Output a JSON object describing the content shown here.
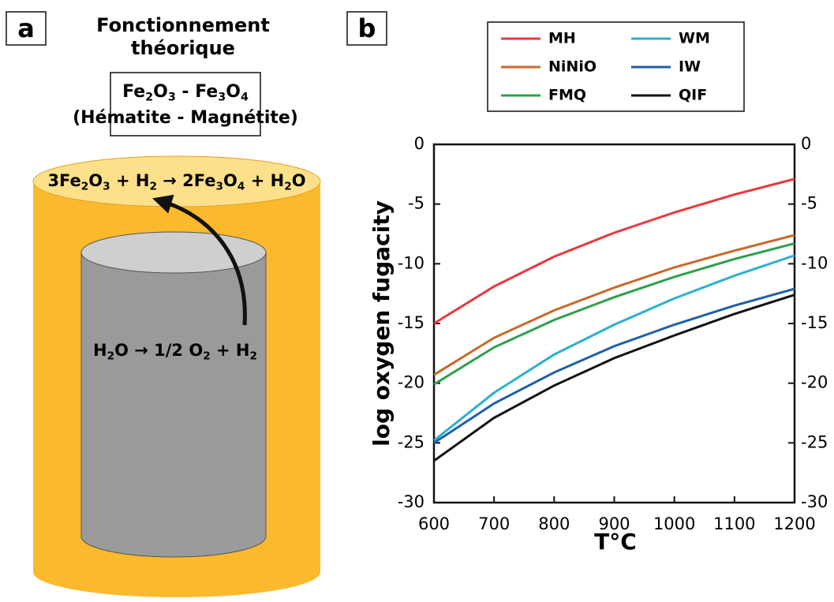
{
  "panel_a": {
    "label": "a",
    "title": [
      "Fonctionnement",
      "théorique"
    ],
    "box_lines": [
      [
        {
          "text": "Fe"
        },
        {
          "sub": "2"
        },
        {
          "text": "O"
        },
        {
          "sub": "3"
        },
        {
          "text": " - Fe"
        },
        {
          "sub": "3"
        },
        {
          "text": "O"
        },
        {
          "sub": "4"
        }
      ],
      [
        {
          "text": "(Hématite - Magnétite)"
        }
      ]
    ],
    "outer_reaction": [
      {
        "text": "3Fe"
      },
      {
        "sub": "2"
      },
      {
        "text": "O"
      },
      {
        "sub": "3"
      },
      {
        "text": " + H"
      },
      {
        "sub": "2"
      },
      {
        "text": " → 2Fe"
      },
      {
        "sub": "3"
      },
      {
        "text": "O"
      },
      {
        "sub": "4"
      },
      {
        "text": " + H"
      },
      {
        "sub": "2"
      },
      {
        "text": "O"
      }
    ],
    "inner_reaction": [
      {
        "text": "H"
      },
      {
        "sub": "2"
      },
      {
        "text": "O → 1/2 O"
      },
      {
        "sub": "2"
      },
      {
        "text": " + H"
      },
      {
        "sub": "2"
      }
    ]
  },
  "chart_data": {
    "type": "line",
    "panel_label": "b",
    "x_label": "T°C",
    "y_label": "log oxygen fugacity",
    "x": [
      600,
      700,
      800,
      900,
      1000,
      1100,
      1200
    ],
    "series": [
      {
        "name": "MH",
        "color": "#e8383d",
        "values": [
          -15,
          -11.9,
          -9.4,
          -7.4,
          -5.7,
          -4.2,
          -2.9
        ]
      },
      {
        "name": "NiNiO",
        "color": "#c8692a",
        "values": [
          -19.3,
          -16.2,
          -13.9,
          -12,
          -10.3,
          -8.9,
          -7.6
        ]
      },
      {
        "name": "FMQ",
        "color": "#2ea04a",
        "values": [
          -20.1,
          -17,
          -14.7,
          -12.8,
          -11.1,
          -9.6,
          -8.3
        ]
      },
      {
        "name": "WM",
        "color": "#2cb0d0",
        "values": [
          -24.8,
          -20.8,
          -17.6,
          -15.1,
          -12.9,
          -11,
          -9.3
        ]
      },
      {
        "name": "IW",
        "color": "#1f5fa8",
        "values": [
          -25,
          -21.7,
          -19.1,
          -16.9,
          -15.1,
          -13.5,
          -12.1
        ]
      },
      {
        "name": "QIF",
        "color": "#111111",
        "values": [
          -26.5,
          -22.9,
          -20.2,
          -17.9,
          -16,
          -14.2,
          -12.6
        ]
      }
    ],
    "xlim": [
      600,
      1200
    ],
    "xticks": [
      600,
      700,
      800,
      900,
      1000,
      1100,
      1200
    ],
    "ylim": [
      -30,
      0
    ],
    "yticks": [
      0,
      -5,
      -10,
      -15,
      -20,
      -25,
      -30
    ],
    "y2lim": [
      -30,
      0
    ],
    "y2ticks": [
      0,
      -5,
      -10,
      -15,
      -20,
      -25,
      -30
    ]
  }
}
